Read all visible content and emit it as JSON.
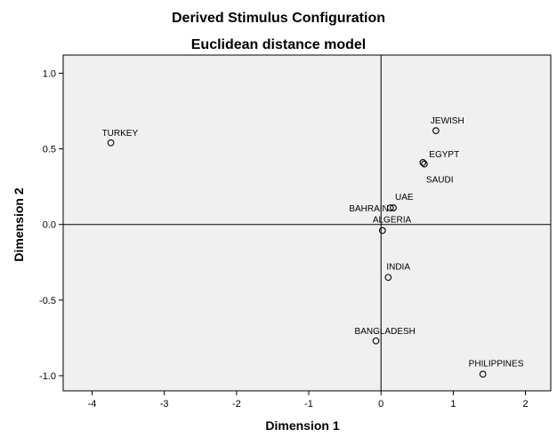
{
  "chart_data": {
    "type": "scatter",
    "title": "Derived Stimulus Configuration",
    "subtitle": "Euclidean distance model",
    "xlabel": "Dimension 1",
    "ylabel": "Dimension 2",
    "xlim": [
      -4.4,
      2.35
    ],
    "ylim": [
      -1.1,
      1.12
    ],
    "xticks": [
      -4,
      -3,
      -2,
      -1,
      0,
      1,
      2
    ],
    "yticks": [
      1.0,
      0.5,
      0.0,
      -0.5,
      -1.0
    ],
    "xtick_labels": [
      "-4",
      "-3",
      "-2",
      "-1",
      "0",
      "1",
      "2"
    ],
    "ytick_labels": [
      "1.0",
      "0.5",
      "0.0",
      "-0.5",
      "-1.0"
    ],
    "grid": false,
    "reference_lines": {
      "x": 0,
      "y": 0
    },
    "colors": {
      "plot_bg": "#f0f0f0",
      "marker": "#000000"
    },
    "points": [
      {
        "label": "TURKEY",
        "x": -3.74,
        "y": 0.54
      },
      {
        "label": "JEWISH",
        "x": 0.76,
        "y": 0.62
      },
      {
        "label": "EGYPT",
        "x": 0.58,
        "y": 0.41
      },
      {
        "label": "SAUDI",
        "x": 0.6,
        "y": 0.4
      },
      {
        "label": "UAE",
        "x": 0.17,
        "y": 0.11
      },
      {
        "label": "BAHRAIN",
        "x": 0.13,
        "y": 0.11
      },
      {
        "label": "ALGERIA",
        "x": 0.02,
        "y": -0.04
      },
      {
        "label": "INDIA",
        "x": 0.1,
        "y": -0.35
      },
      {
        "label": "BANGLADESH",
        "x": -0.07,
        "y": -0.77
      },
      {
        "label": "PHILIPPINES",
        "x": 1.41,
        "y": -0.99
      }
    ]
  }
}
